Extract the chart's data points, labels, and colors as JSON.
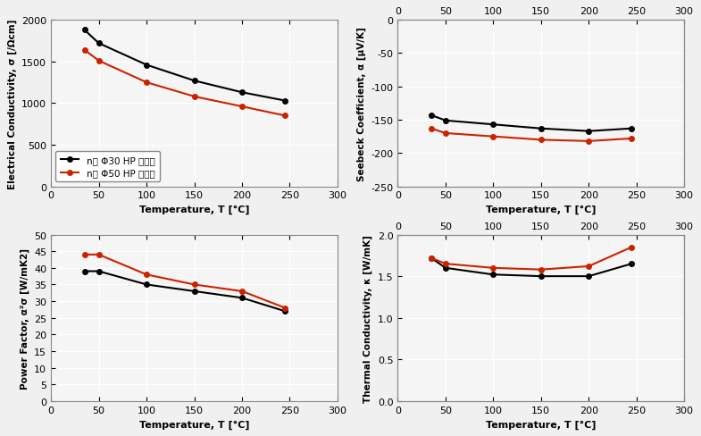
{
  "temp": [
    35,
    50,
    100,
    150,
    200,
    245
  ],
  "elec_cond_phi30": [
    1880,
    1720,
    1460,
    1270,
    1130,
    1030
  ],
  "elec_cond_phi50": [
    1640,
    1510,
    1250,
    1080,
    960,
    850
  ],
  "seebeck_phi30": [
    -143,
    -151,
    -157,
    -163,
    -167,
    -163
  ],
  "seebeck_phi50": [
    -163,
    -170,
    -175,
    -180,
    -182,
    -178
  ],
  "power_phi30": [
    39,
    39,
    35,
    33,
    31,
    27
  ],
  "power_phi50": [
    44,
    44,
    38,
    35,
    33,
    28
  ],
  "thermal_phi30": [
    1.72,
    1.6,
    1.52,
    1.5,
    1.5,
    1.65
  ],
  "thermal_phi50": [
    1.72,
    1.65,
    1.6,
    1.58,
    1.62,
    1.85
  ],
  "color_phi30": "#000000",
  "color_phi50": "#cc2200",
  "legend_phi30": "n형 Φ30 HP 소결재",
  "legend_phi50": "n형 Φ50 HP 소결재",
  "xlabel": "Temperature, T [°C]",
  "ylabel_elec": "Electrical Conductivity, σ [/Ωcm]",
  "ylabel_seebeck": "Seebeck Coefficient, α [μV/K]",
  "ylabel_power": "Power Factor, α²σ [W/mK2]",
  "ylabel_thermal": "Thermal Conductivity, κ [W/mK]",
  "xlim": [
    0,
    300
  ],
  "xticks": [
    0,
    50,
    100,
    150,
    200,
    250,
    300
  ],
  "elec_ylim": [
    0,
    2000
  ],
  "elec_yticks": [
    0,
    500,
    1000,
    1500,
    2000
  ],
  "seebeck_ylim": [
    -250,
    0
  ],
  "seebeck_yticks": [
    -250,
    -200,
    -150,
    -100,
    -50,
    0
  ],
  "power_ylim": [
    0,
    50
  ],
  "power_yticks": [
    0,
    5,
    10,
    15,
    20,
    25,
    30,
    35,
    40,
    45,
    50
  ],
  "thermal_ylim": [
    0,
    2
  ],
  "thermal_yticks": [
    0,
    0.5,
    1.0,
    1.5,
    2.0
  ],
  "plot_bg": "#f5f5f5",
  "fig_bg": "#f0f0f0",
  "grid_color": "#ffffff"
}
